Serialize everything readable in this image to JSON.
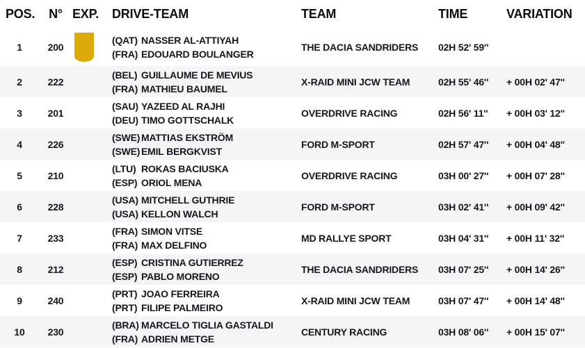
{
  "colors": {
    "badge_gold": "#dca90a",
    "row_stripe": "#f5f5f5",
    "text_dark": "#15151e"
  },
  "table": {
    "headers": {
      "pos": "POS.",
      "num": "N°",
      "exp": "EXP.",
      "drive_team": "DRIVE-TEAM",
      "team": "TEAM",
      "time": "TIME",
      "variation": "VARIATION"
    },
    "rows": [
      {
        "pos": "1",
        "num": "200",
        "has_exp_badge": true,
        "drivers": [
          {
            "country": "(QAT)",
            "name": "NASSER AL-ATTIYAH"
          },
          {
            "country": "(FRA)",
            "name": "EDOUARD BOULANGER"
          }
        ],
        "team": "THE DACIA SANDRIDERS",
        "time": "02H 52' 59''",
        "variation": ""
      },
      {
        "pos": "2",
        "num": "222",
        "has_exp_badge": false,
        "drivers": [
          {
            "country": "(BEL)",
            "name": "GUILLAUME DE MEVIUS"
          },
          {
            "country": "(FRA)",
            "name": "MATHIEU BAUMEL"
          }
        ],
        "team": "X-RAID MINI JCW TEAM",
        "time": "02H 55' 46''",
        "variation": "+ 00H 02' 47''"
      },
      {
        "pos": "3",
        "num": "201",
        "has_exp_badge": false,
        "drivers": [
          {
            "country": "(SAU)",
            "name": "YAZEED AL RAJHI"
          },
          {
            "country": "(DEU)",
            "name": "TIMO GOTTSCHALK"
          }
        ],
        "team": "OVERDRIVE RACING",
        "time": "02H 56' 11''",
        "variation": "+ 00H 03' 12''"
      },
      {
        "pos": "4",
        "num": "226",
        "has_exp_badge": false,
        "drivers": [
          {
            "country": "(SWE)",
            "name": "MATTIAS EKSTRÖM"
          },
          {
            "country": "(SWE)",
            "name": "EMIL BERGKVIST"
          }
        ],
        "team": "FORD M-SPORT",
        "time": "02H 57' 47''",
        "variation": "+ 00H 04' 48''"
      },
      {
        "pos": "5",
        "num": "210",
        "has_exp_badge": false,
        "drivers": [
          {
            "country": "(LTU)",
            "name": "ROKAS BACIUSKA"
          },
          {
            "country": "(ESP)",
            "name": "ORIOL MENA"
          }
        ],
        "team": "OVERDRIVE RACING",
        "time": "03H 00' 27''",
        "variation": "+ 00H 07' 28''"
      },
      {
        "pos": "6",
        "num": "228",
        "has_exp_badge": false,
        "drivers": [
          {
            "country": "(USA)",
            "name": "MITCHELL GUTHRIE"
          },
          {
            "country": "(USA)",
            "name": "KELLON WALCH"
          }
        ],
        "team": "FORD M-SPORT",
        "time": "03H 02' 41''",
        "variation": "+ 00H 09' 42''"
      },
      {
        "pos": "7",
        "num": "233",
        "has_exp_badge": false,
        "drivers": [
          {
            "country": "(FRA)",
            "name": "SIMON VITSE"
          },
          {
            "country": "(FRA)",
            "name": "MAX DELFINO"
          }
        ],
        "team": "MD RALLYE SPORT",
        "time": "03H 04' 31''",
        "variation": "+ 00H 11' 32''"
      },
      {
        "pos": "8",
        "num": "212",
        "has_exp_badge": false,
        "drivers": [
          {
            "country": "(ESP)",
            "name": "CRISTINA GUTIERREZ"
          },
          {
            "country": "(ESP)",
            "name": "PABLO MORENO"
          }
        ],
        "team": "THE DACIA SANDRIDERS",
        "time": "03H 07' 25''",
        "variation": "+ 00H 14' 26''"
      },
      {
        "pos": "9",
        "num": "240",
        "has_exp_badge": false,
        "drivers": [
          {
            "country": "(PRT)",
            "name": "JOAO FERREIRA"
          },
          {
            "country": "(PRT)",
            "name": "FILIPE PALMEIRO"
          }
        ],
        "team": "X-RAID MINI JCW TEAM",
        "time": "03H 07' 47''",
        "variation": "+ 00H 14' 48''"
      },
      {
        "pos": "10",
        "num": "230",
        "has_exp_badge": false,
        "drivers": [
          {
            "country": "(BRA)",
            "name": "MARCELO TIGLIA GASTALDI"
          },
          {
            "country": "(FRA)",
            "name": "ADRIEN METGE"
          }
        ],
        "team": "CENTURY RACING",
        "time": "03H 08' 06''",
        "variation": "+ 00H 15' 07''"
      }
    ]
  }
}
